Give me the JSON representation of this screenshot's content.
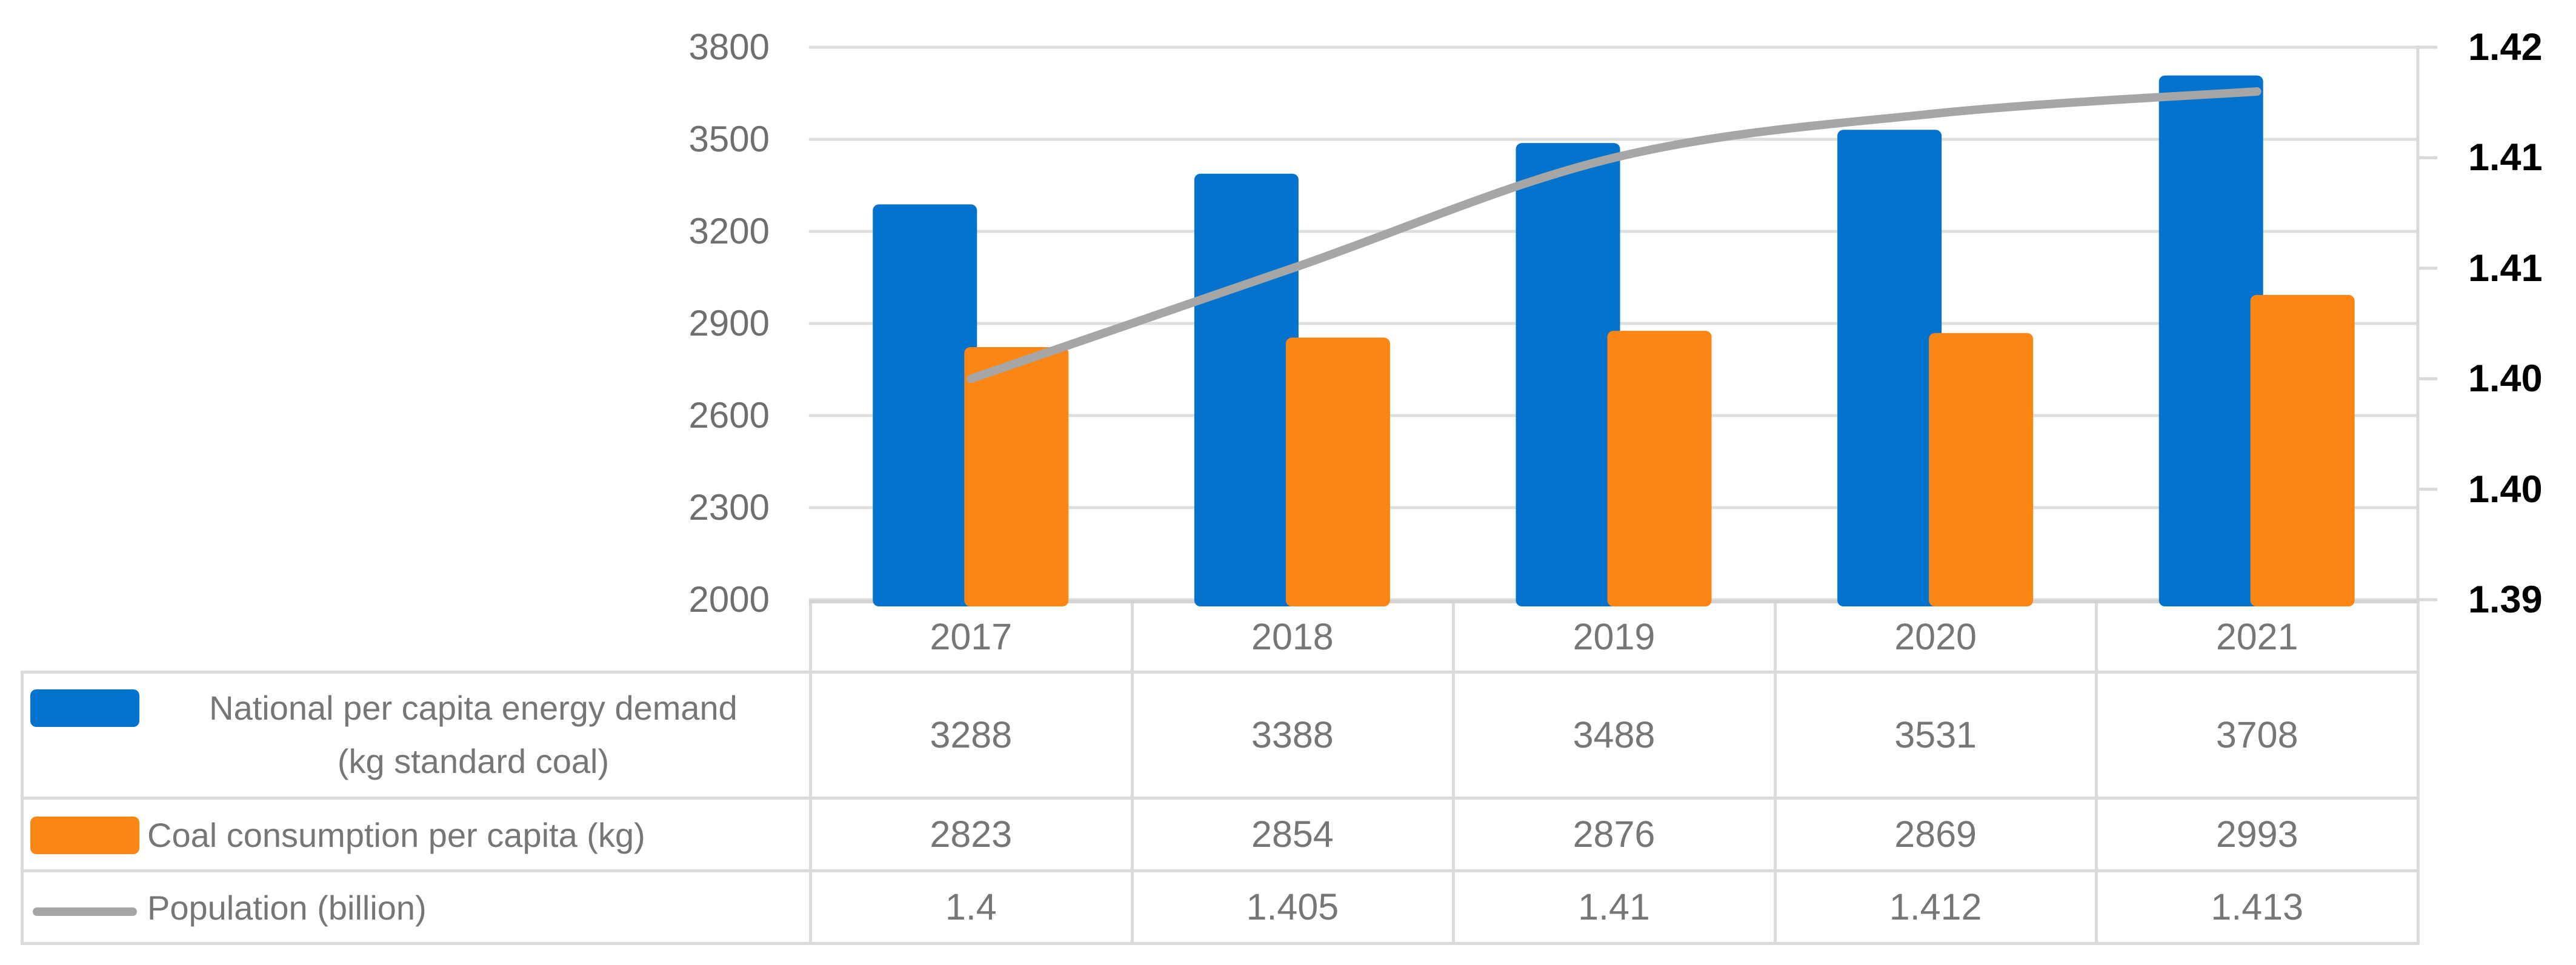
{
  "chart_data": {
    "type": "combo-bar-line",
    "categories": [
      "2017",
      "2018",
      "2019",
      "2020",
      "2021"
    ],
    "series": [
      {
        "name": "National per capita energy demand (kg standard coal)",
        "legend_lines": [
          "National per capita energy demand",
          "(kg standard coal)"
        ],
        "chart_type": "bar",
        "axis": "left",
        "color": "#0473CE",
        "values": [
          3288,
          3388,
          3488,
          3531,
          3708
        ]
      },
      {
        "name": "Coal consumption per capita (kg)",
        "legend_lines": [
          "Coal consumption per capita (kg)"
        ],
        "chart_type": "bar",
        "axis": "left",
        "color": "#FC8614",
        "values": [
          2823,
          2854,
          2876,
          2869,
          2993
        ]
      },
      {
        "name": "Population (billion)",
        "legend_lines": [
          "Population (billion)"
        ],
        "chart_type": "line",
        "axis": "right",
        "color": "#A6A6A6",
        "values": [
          1.4,
          1.405,
          1.41,
          1.412,
          1.413
        ]
      }
    ],
    "left_axis": {
      "min": 2000,
      "max": 3800,
      "major_unit": 300,
      "tick_labels": [
        "3800",
        "3500",
        "3200",
        "2900",
        "2600",
        "2300",
        "2000"
      ]
    },
    "right_axis": {
      "min": 1.39,
      "max": 1.415,
      "major_unit": 0.005,
      "tick_labels": [
        "1.42",
        "1.41",
        "1.41",
        "1.40",
        "1.40",
        "1.39"
      ]
    },
    "grid": true,
    "legend_position": "left-column-of-data-table"
  }
}
